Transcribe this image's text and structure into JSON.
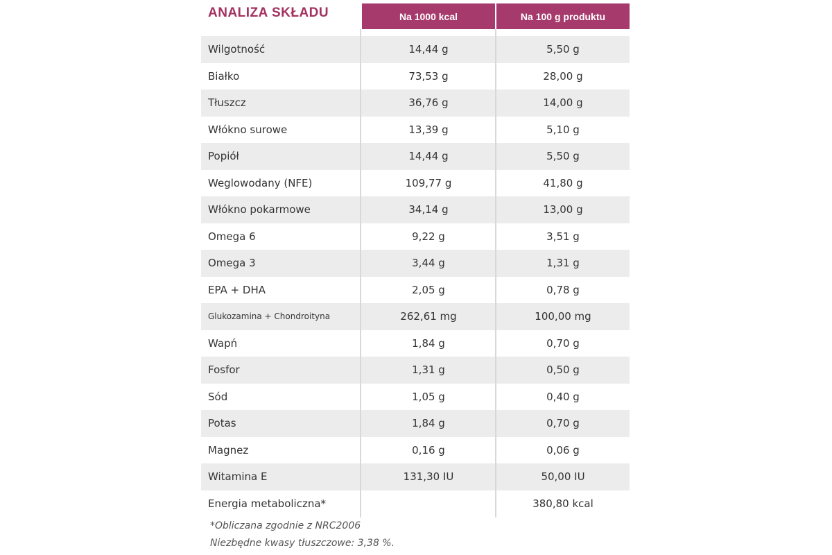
{
  "header": {
    "title": "ANALIZA SKŁADU",
    "columns": [
      "Na 1000 kcal",
      "Na 100 g produktu"
    ]
  },
  "table": {
    "rows": [
      {
        "name": "Wilgotność",
        "kcal": "14,44 g",
        "g": "5,50 g"
      },
      {
        "name": "Białko",
        "kcal": "73,53 g",
        "g": "28,00 g"
      },
      {
        "name": "Tłuszcz",
        "kcal": "36,76 g",
        "g": "14,00 g"
      },
      {
        "name": "Włókno surowe",
        "kcal": "13,39 g",
        "g": "5,10 g"
      },
      {
        "name": "Popiół",
        "kcal": "14,44 g",
        "g": "5,50 g"
      },
      {
        "name": "Weglowodany (NFE)",
        "kcal": "109,77 g",
        "g": "41,80 g"
      },
      {
        "name": "Włókno pokarmowe",
        "kcal": "34,14 g",
        "g": "13,00 g"
      },
      {
        "name": "Omega 6",
        "kcal": "9,22 g",
        "g": "3,51 g"
      },
      {
        "name": "Omega 3",
        "kcal": "3,44 g",
        "g": "1,31 g"
      },
      {
        "name": "EPA + DHA",
        "kcal": "2,05 g",
        "g": "0,78 g"
      },
      {
        "name": "Glukozamina + Chondroityna",
        "kcal": "262,61 mg",
        "g": "100,00 mg"
      },
      {
        "name": "Wapń",
        "kcal": "1,84 g",
        "g": "0,70 g"
      },
      {
        "name": "Fosfor",
        "kcal": "1,31 g",
        "g": "0,50 g"
      },
      {
        "name": "Sód",
        "kcal": "1,05 g",
        "g": "0,40 g"
      },
      {
        "name": "Potas",
        "kcal": "1,84 g",
        "g": "0,70 g"
      },
      {
        "name": "Magnez",
        "kcal": "0,16 g",
        "g": "0,06 g"
      },
      {
        "name": "Witamina E",
        "kcal": "131,30 IU",
        "g": "50,00 IU"
      },
      {
        "name": "Energia metaboliczna*",
        "g": "380,80 kcal"
      }
    ]
  },
  "footnotes": [
    "*Obliczana zgodnie z NRC2006",
    "Niezbędne kwasy tłuszczowe: 3,38 %."
  ]
}
